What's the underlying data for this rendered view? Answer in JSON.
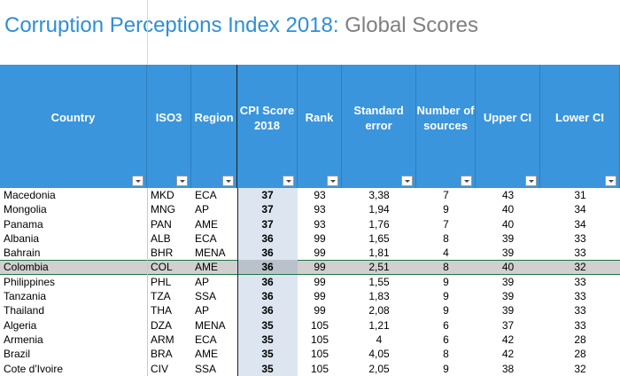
{
  "title": {
    "main": "Corruption Perceptions Index 2018:",
    "sub": "Global Scores"
  },
  "columns": [
    {
      "key": "country",
      "label": "Country"
    },
    {
      "key": "iso3",
      "label": "ISO3"
    },
    {
      "key": "region",
      "label": "Region"
    },
    {
      "key": "cpi",
      "label": "CPI Score 2018"
    },
    {
      "key": "rank",
      "label": "Rank"
    },
    {
      "key": "se",
      "label": "Standard error"
    },
    {
      "key": "sources",
      "label": "Number of sources"
    },
    {
      "key": "upper",
      "label": "Upper CI"
    },
    {
      "key": "lower",
      "label": "Lower CI"
    }
  ],
  "rows": [
    [
      "Macedonia",
      "MKD",
      "ECA",
      "37",
      "93",
      "3,38",
      "7",
      "43",
      "31"
    ],
    [
      "Mongolia",
      "MNG",
      "AP",
      "37",
      "93",
      "1,94",
      "9",
      "40",
      "34"
    ],
    [
      "Panama",
      "PAN",
      "AME",
      "37",
      "93",
      "1,76",
      "7",
      "40",
      "34"
    ],
    [
      "Albania",
      "ALB",
      "ECA",
      "36",
      "99",
      "1,65",
      "8",
      "39",
      "33"
    ],
    [
      "Bahrain",
      "BHR",
      "MENA",
      "36",
      "99",
      "1,81",
      "4",
      "39",
      "33"
    ],
    [
      "Colombia",
      "COL",
      "AME",
      "36",
      "99",
      "2,51",
      "8",
      "40",
      "32"
    ],
    [
      "Philippines",
      "PHL",
      "AP",
      "36",
      "99",
      "1,55",
      "9",
      "39",
      "33"
    ],
    [
      "Tanzania",
      "TZA",
      "SSA",
      "36",
      "99",
      "1,83",
      "9",
      "39",
      "33"
    ],
    [
      "Thailand",
      "THA",
      "AP",
      "36",
      "99",
      "2,08",
      "9",
      "39",
      "33"
    ],
    [
      "Algeria",
      "DZA",
      "MENA",
      "35",
      "105",
      "1,21",
      "6",
      "37",
      "33"
    ],
    [
      "Armenia",
      "ARM",
      "ECA",
      "35",
      "105",
      "4",
      "6",
      "42",
      "28"
    ],
    [
      "Brazil",
      "BRA",
      "AME",
      "35",
      "105",
      "4,05",
      "8",
      "42",
      "28"
    ],
    [
      "Cote d'Ivoire",
      "CIV",
      "SSA",
      "35",
      "105",
      "2,05",
      "9",
      "38",
      "32"
    ]
  ],
  "selected_row": "Colombia"
}
